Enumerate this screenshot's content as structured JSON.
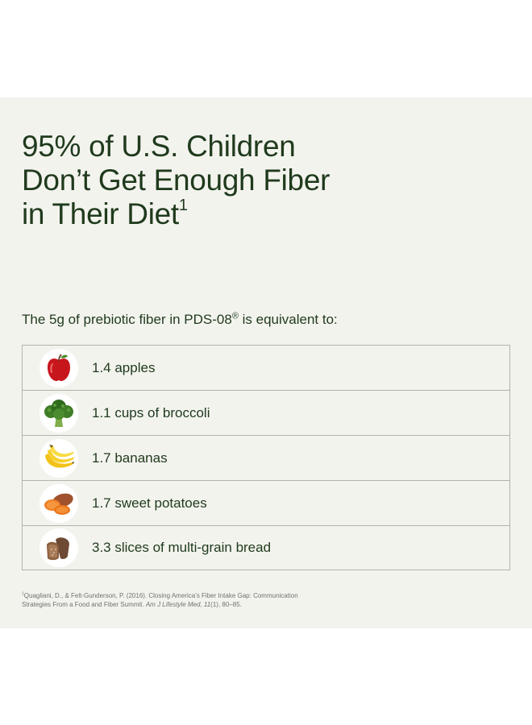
{
  "headline": {
    "lines": [
      "95% of U.S. Children",
      "Don’t Get Enough Fiber",
      "in Their Diet"
    ],
    "footnote_mark": "1"
  },
  "intro": {
    "before": "The 5g of prebiotic fiber in PDS-08",
    "mark": "®",
    "after": " is equivalent to:"
  },
  "equivalents": [
    {
      "icon": "apple-icon",
      "label": "1.4 apples"
    },
    {
      "icon": "broccoli-icon",
      "label": "1.1 cups of broccoli"
    },
    {
      "icon": "banana-icon",
      "label": "1.7 bananas"
    },
    {
      "icon": "sweet-potato-icon",
      "label": "1.7 sweet potatoes"
    },
    {
      "icon": "bread-icon",
      "label": "3.3 slices of multi-grain bread"
    }
  ],
  "footnote": {
    "mark": "1",
    "text_line1": "Quagliani, D., & Felt-Gunderson, P. (2016). Closing America’s Fiber Intake Gap: Communication",
    "text_line2": "Strategies From a Food and Fiber Summit. ",
    "journal": "Am J Lifestyle Med, 11",
    "issue": "(1), 80–85."
  },
  "colors": {
    "panel_background": "#f3f3ee",
    "text_dark_green": "#1f3a1c",
    "table_border": "#b3b3ad",
    "footnote_text": "#707070"
  }
}
